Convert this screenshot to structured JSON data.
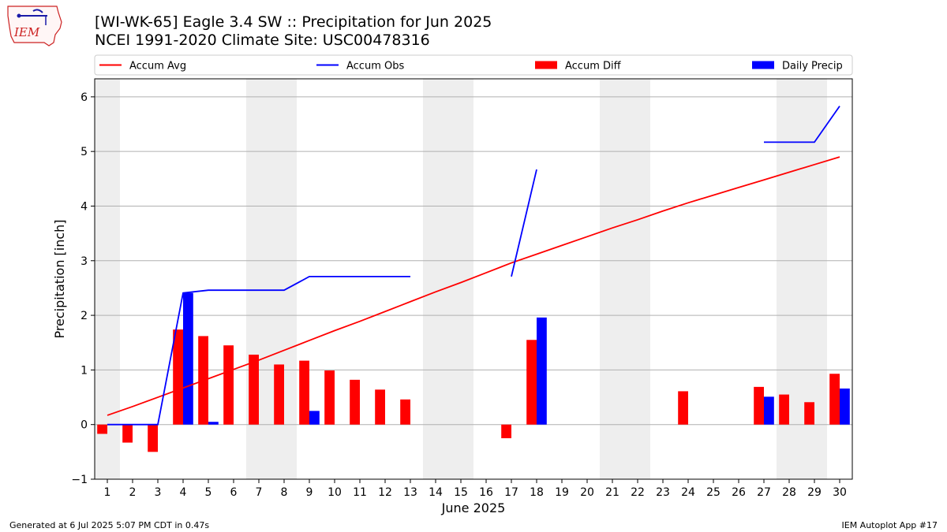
{
  "header": {
    "title_line1": "[WI-WK-65] Eagle 3.4 SW :: Precipitation for Jun 2025",
    "title_line2": "NCEI 1991-2020 Climate Site: USC00478316",
    "logo_text": "IEM"
  },
  "footer": {
    "left": "Generated at 6 Jul 2025 5:07 PM CDT in 0.47s",
    "right": "IEM Autoplot App #17"
  },
  "colors": {
    "accum_avg": "#ff0000",
    "accum_obs": "#0000ff",
    "accum_diff": "#ff0000",
    "daily_precip": "#0000ff",
    "weekend_shade": "#eeeeee",
    "grid": "#b0b0b0"
  },
  "chart_data": {
    "type": "bar",
    "xlabel": "June 2025",
    "ylabel": "Precipitation [inch]",
    "ylim": [
      -1,
      6.33
    ],
    "yticks": [
      -1,
      0,
      1,
      2,
      3,
      4,
      5,
      6
    ],
    "xlim": [
      0.5,
      30.5
    ],
    "grid": "horizontal",
    "legend_placement": "top",
    "days": [
      1,
      2,
      3,
      4,
      5,
      6,
      7,
      8,
      9,
      10,
      11,
      12,
      13,
      14,
      15,
      16,
      17,
      18,
      19,
      20,
      21,
      22,
      23,
      24,
      25,
      26,
      27,
      28,
      29,
      30
    ],
    "weekend_days": [
      1,
      7,
      8,
      14,
      15,
      21,
      22,
      28,
      29
    ],
    "legend": [
      "Accum Avg",
      "Accum Obs",
      "Accum Diff",
      "Daily Precip"
    ],
    "series": [
      {
        "name": "Accum Avg",
        "kind": "line",
        "values": [
          0.17,
          0.33,
          0.5,
          0.67,
          0.84,
          1.01,
          1.18,
          1.36,
          1.54,
          1.72,
          1.89,
          2.07,
          2.25,
          2.43,
          2.6,
          2.78,
          2.96,
          3.12,
          3.28,
          3.44,
          3.6,
          3.75,
          3.91,
          4.06,
          4.2,
          4.34,
          4.48,
          4.62,
          4.76,
          4.9
        ]
      },
      {
        "name": "Accum Obs",
        "kind": "line",
        "values": [
          0.0,
          0.0,
          0.0,
          2.41,
          2.46,
          2.46,
          2.46,
          2.46,
          2.71,
          2.71,
          2.71,
          2.71,
          2.71,
          null,
          null,
          null,
          2.71,
          4.67,
          null,
          null,
          null,
          null,
          null,
          null,
          null,
          null,
          5.17,
          5.17,
          5.17,
          5.83
        ]
      },
      {
        "name": "Accum Diff",
        "kind": "bar",
        "values": [
          -0.17,
          -0.33,
          -0.5,
          1.74,
          1.62,
          1.45,
          1.28,
          1.1,
          1.17,
          0.99,
          0.82,
          0.64,
          0.46,
          null,
          null,
          null,
          -0.25,
          1.55,
          null,
          null,
          null,
          null,
          null,
          0.61,
          null,
          null,
          0.69,
          0.55,
          0.41,
          0.93
        ]
      },
      {
        "name": "Daily Precip",
        "kind": "bar",
        "values": [
          0.0,
          0.0,
          0.0,
          2.41,
          0.05,
          0.0,
          0.0,
          0.0,
          0.25,
          0.0,
          0.0,
          0.0,
          0.0,
          null,
          null,
          null,
          0.0,
          1.96,
          null,
          null,
          null,
          null,
          null,
          null,
          null,
          null,
          0.51,
          0.0,
          0.0,
          0.66
        ]
      }
    ]
  }
}
